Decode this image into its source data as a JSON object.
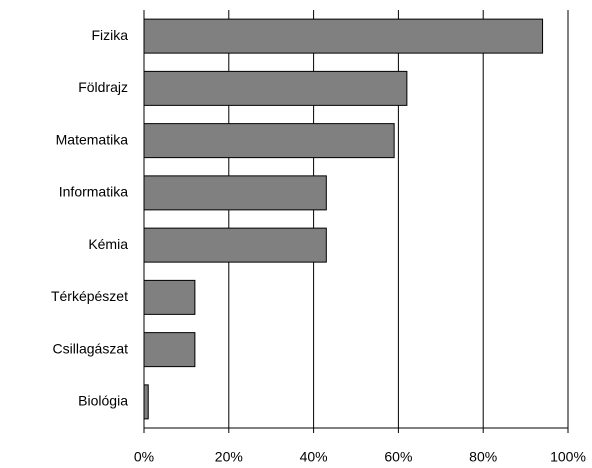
{
  "chart_data": {
    "type": "bar",
    "orientation": "horizontal",
    "categories": [
      "Fizika",
      "Földrajz",
      "Matematika",
      "Informatika",
      "Kémia",
      "Térképészet",
      "Csillagászat",
      "Biológia"
    ],
    "values": [
      94,
      62,
      59,
      43,
      43,
      12,
      12,
      1
    ],
    "color": "#808080",
    "xlim": [
      0,
      100
    ],
    "xticks": [
      {
        "value": 0,
        "label": "0%"
      },
      {
        "value": 20,
        "label": "20%"
      },
      {
        "value": 40,
        "label": "40%"
      },
      {
        "value": 60,
        "label": "60%"
      },
      {
        "value": 80,
        "label": "80%"
      },
      {
        "value": 100,
        "label": "100%"
      }
    ],
    "grid": true
  }
}
